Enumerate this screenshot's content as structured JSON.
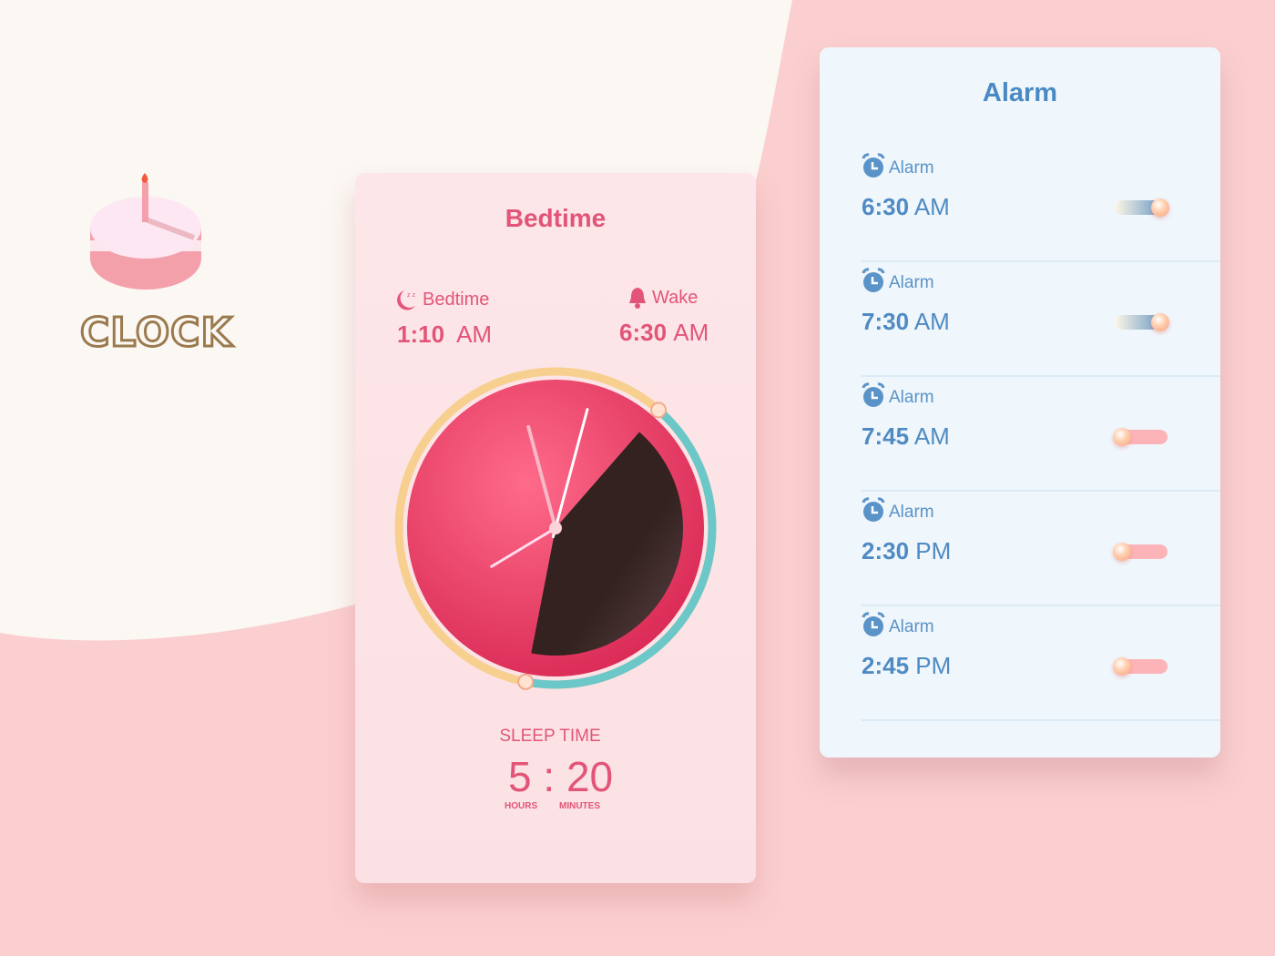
{
  "brand": {
    "name": "CLOCK",
    "icon": "birthday-cake-icon"
  },
  "bedtime_card": {
    "title": "Bedtime",
    "bedtime": {
      "label": "Bedtime",
      "hour_min": "1:10",
      "ampm": "AM",
      "icon": "moon-sleep-icon"
    },
    "wake": {
      "label": "Wake",
      "hour_min": "6:30",
      "ampm": "AM",
      "icon": "bell-icon"
    },
    "clock": {
      "hour_hand_deg": -15,
      "minute_hand_deg": 15,
      "second_hand_deg": 239,
      "sleep_arc_from_hour": 1.17,
      "sleep_arc_to_hour": 6.5
    },
    "sleep_time": {
      "label": "SLEEP TIME",
      "hours": "5",
      "minutes": "20",
      "hours_label": "HOURS",
      "minutes_label": "MINUTES"
    },
    "colors": {
      "accent": "#e25578",
      "face": "#ee4f74",
      "wedge": "#33221f",
      "ring_bed": "#f7cf8e",
      "ring_sleep": "#6cc7c9"
    }
  },
  "alarm_card": {
    "title": "Alarm",
    "items": [
      {
        "label": "Alarm",
        "time": "6:30",
        "ampm": "AM",
        "enabled": true
      },
      {
        "label": "Alarm",
        "time": "7:30",
        "ampm": "AM",
        "enabled": true
      },
      {
        "label": "Alarm",
        "time": "7:45",
        "ampm": "AM",
        "enabled": false
      },
      {
        "label": "Alarm",
        "time": "2:30",
        "ampm": "PM",
        "enabled": false
      },
      {
        "label": "Alarm",
        "time": "2:45",
        "ampm": "PM",
        "enabled": false
      }
    ],
    "colors": {
      "accent": "#4f8bc2"
    }
  }
}
